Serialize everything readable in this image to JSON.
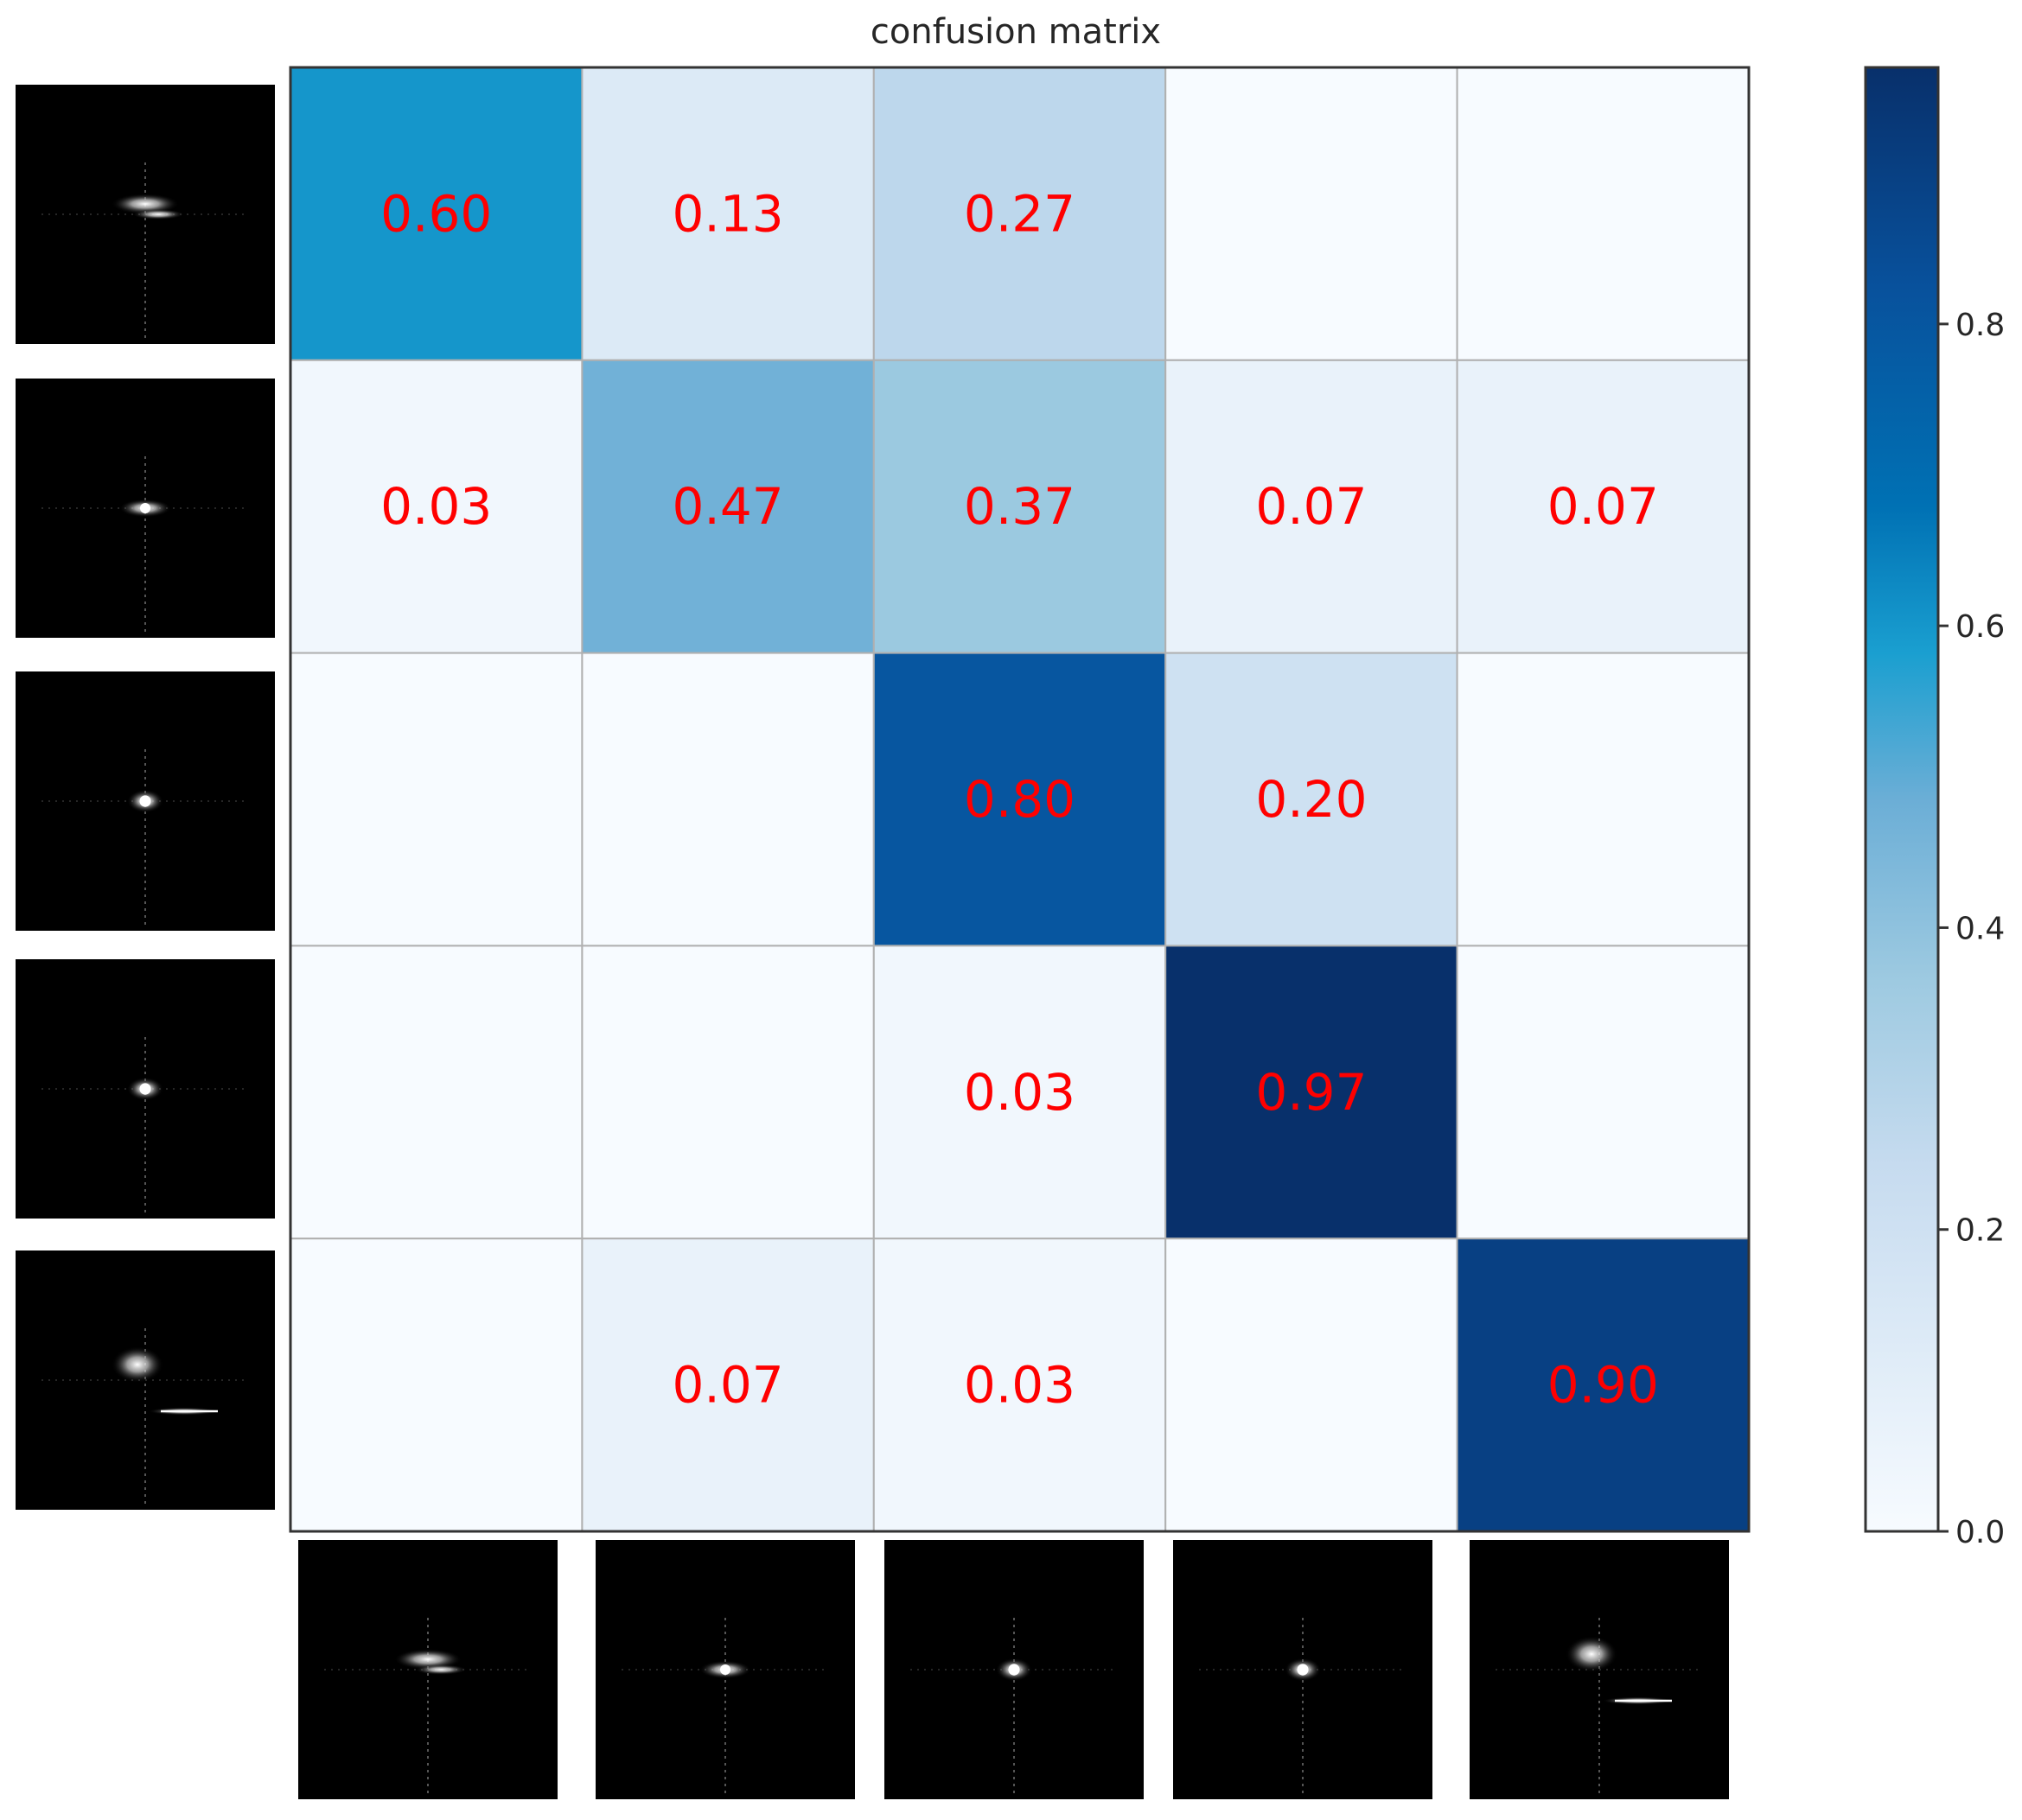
{
  "chart_data": {
    "type": "heatmap",
    "title": "confusion matrix",
    "xlabel": "",
    "ylabel": "",
    "rows": 5,
    "cols": 5,
    "matrix": [
      [
        0.6,
        0.13,
        0.27,
        0.0,
        0.0
      ],
      [
        0.03,
        0.47,
        0.37,
        0.07,
        0.07
      ],
      [
        0.0,
        0.0,
        0.8,
        0.2,
        0.0
      ],
      [
        0.0,
        0.0,
        0.03,
        0.97,
        0.0
      ],
      [
        0.0,
        0.07,
        0.03,
        0.0,
        0.9
      ]
    ],
    "cell_labels": [
      [
        "0.60",
        "0.13",
        "0.27",
        "",
        ""
      ],
      [
        "0.03",
        "0.47",
        "0.37",
        "0.07",
        "0.07"
      ],
      [
        "",
        "",
        "0.80",
        "0.20",
        ""
      ],
      [
        "",
        "",
        "0.03",
        "0.97",
        ""
      ],
      [
        "",
        "0.07",
        "0.03",
        "",
        "0.90"
      ]
    ],
    "annotation_color": "#ff0000",
    "colormap": "Blues",
    "colorbar": {
      "range": [
        0,
        0.97
      ],
      "ticks": [
        0.0,
        0.2,
        0.4,
        0.6,
        0.8
      ],
      "tick_labels": [
        "0.0",
        "0.2",
        "0.4",
        "0.6",
        "0.8"
      ],
      "placement": "right"
    },
    "grid": true,
    "row_tick_images": [
      "radar-spectrogram-icon",
      "radar-spectrogram-icon",
      "radar-spectrogram-icon",
      "radar-spectrogram-icon",
      "radar-spectrogram-icon"
    ],
    "col_tick_images": [
      "radar-spectrogram-icon",
      "radar-spectrogram-icon",
      "radar-spectrogram-icon",
      "radar-spectrogram-icon",
      "radar-spectrogram-icon"
    ]
  }
}
